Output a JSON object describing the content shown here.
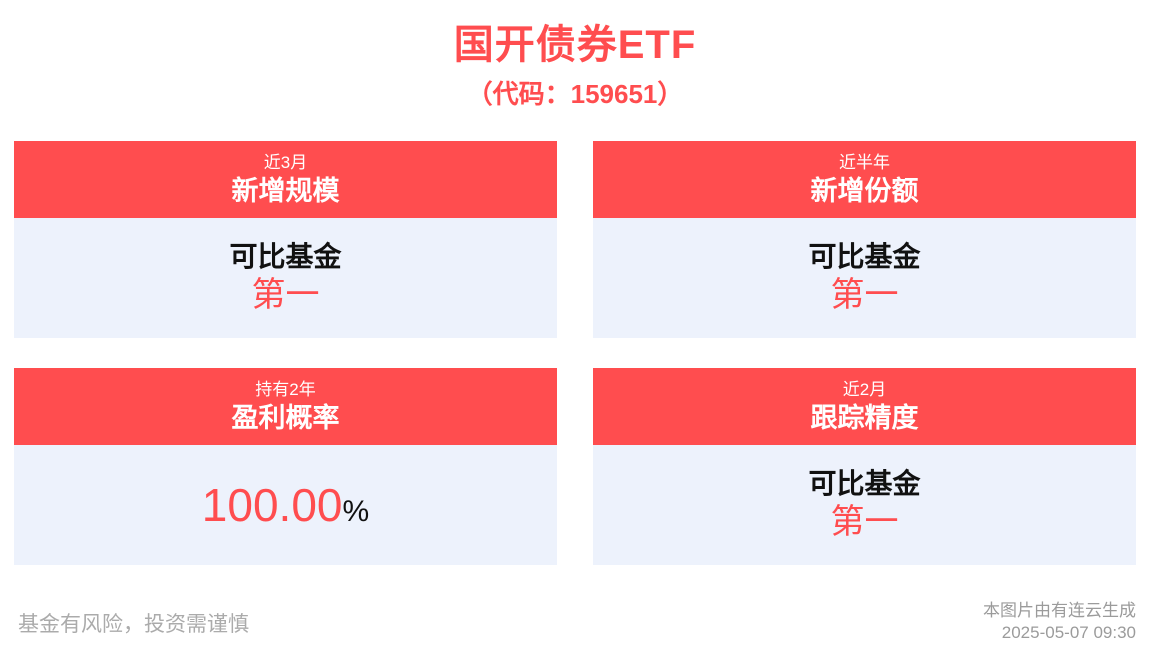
{
  "page": {
    "title": "国开债券ETF",
    "subtitle": "（代码：159651）"
  },
  "cards": [
    {
      "period": "近3月",
      "metric": "新增规模",
      "body": {
        "label": "可比基金",
        "rank": "第一"
      }
    },
    {
      "period": "近半年",
      "metric": "新增份额",
      "body": {
        "label": "可比基金",
        "rank": "第一"
      }
    },
    {
      "period": "持有2年",
      "metric": "盈利概率",
      "body": {
        "value": "100.00",
        "unit": "%"
      }
    },
    {
      "period": "近2月",
      "metric": "跟踪精度",
      "body": {
        "label": "可比基金",
        "rank": "第一"
      }
    }
  ],
  "footer": {
    "disclaimer": "基金有风险，投资需谨慎",
    "source": "本图片由有连云生成",
    "timestamp": "2025-05-07 09:30"
  },
  "colors": {
    "accent_red": "#FF4D4F",
    "card_body_bg": "#EDF2FC",
    "disclaimer_gray": "#ABABAB",
    "source_gray": "#9B9B9B"
  }
}
